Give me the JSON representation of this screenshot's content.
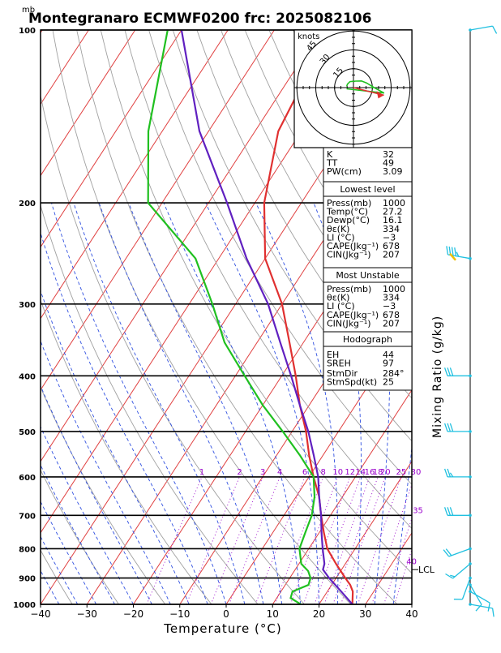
{
  "title": "Montegranaro ECMWF0200  frc: 2025082106",
  "y_unit": "mb",
  "xlabel": "Temperature (°C)",
  "mixing_label": "Mixing Ratio (g/kg)",
  "hodo_unit": "knots",
  "hodo_rings": [
    "15",
    "30",
    "45"
  ],
  "lcl_label": "LCL",
  "lcl_pressure": 870,
  "mixing_ratio_labels": [
    "1",
    "2",
    "3",
    "4",
    "6",
    "8",
    "10",
    "12",
    "14",
    "16",
    "18",
    "20",
    "25",
    "30",
    "35",
    "40"
  ],
  "indices": [
    {
      "k": "K",
      "v": "32"
    },
    {
      "k": "TT",
      "v": "49"
    },
    {
      "k": "PW(cm)",
      "v": "3.09"
    }
  ],
  "lowest_level": {
    "heading": "Lowest level",
    "rows": [
      {
        "k": "Press(mb)",
        "v": "1000"
      },
      {
        "k": "Temp(°C)",
        "v": "27.2"
      },
      {
        "k": "Dewp(°C)",
        "v": "16.1"
      },
      {
        "k": "θε(K)",
        "v": "334"
      },
      {
        "k": "LI (°C)",
        "v": "−3"
      },
      {
        "k": "CAPE(Jkg⁻¹)",
        "v": "678"
      },
      {
        "k": "CIN(Jkg⁻¹)",
        "v": "207"
      }
    ]
  },
  "most_unstable": {
    "heading": "Most Unstable",
    "rows": [
      {
        "k": "Press(mb)",
        "v": "1000"
      },
      {
        "k": "θε(K)",
        "v": "334"
      },
      {
        "k": "LI (°C)",
        "v": "−3"
      },
      {
        "k": "CAPE(Jkg⁻¹)",
        "v": "678"
      },
      {
        "k": "CIN(Jkg⁻¹)",
        "v": "207"
      }
    ]
  },
  "hodograph": {
    "heading": "Hodograph",
    "rows": [
      {
        "k": "EH",
        "v": "44"
      },
      {
        "k": "SREH",
        "v": "97"
      },
      {
        "k": "StmDir",
        "v": "284°"
      },
      {
        "k": "StmSpd(kt)",
        "v": "25"
      }
    ]
  },
  "colors": {
    "temperature": "#e03030",
    "dewpoint": "#20c020",
    "parcel": "#6020c0",
    "isotherm": "#e04040",
    "dry_adiabat": "#a0a0a0",
    "moist_adiabat": "#3050e0",
    "mixing_ratio": "#9900cc",
    "barb": "#20c0e0"
  },
  "chart_data": {
    "type": "line",
    "title": "Montegranaro ECMWF0200  frc: 2025082106",
    "xlabel": "Temperature (°C)",
    "ylabel": "mb",
    "x_ticks": [
      -40,
      -30,
      -20,
      -10,
      0,
      10,
      20,
      30,
      40
    ],
    "y_ticks": [
      100,
      200,
      300,
      400,
      500,
      600,
      700,
      800,
      900,
      1000
    ],
    "xlim": [
      -40,
      40
    ],
    "ylim": [
      1000,
      100
    ],
    "y_scale": "log",
    "series": [
      {
        "key": "temperature",
        "points": [
          [
            1000,
            27.2
          ],
          [
            950,
            25.5
          ],
          [
            925,
            24
          ],
          [
            900,
            22
          ],
          [
            850,
            18
          ],
          [
            800,
            14
          ],
          [
            750,
            11
          ],
          [
            700,
            8
          ],
          [
            650,
            5
          ],
          [
            600,
            1
          ],
          [
            550,
            -3
          ],
          [
            500,
            -7
          ],
          [
            450,
            -12
          ],
          [
            400,
            -17
          ],
          [
            350,
            -23
          ],
          [
            300,
            -30
          ],
          [
            250,
            -40
          ],
          [
            200,
            -48
          ],
          [
            150,
            -55
          ],
          [
            100,
            -58
          ]
        ]
      },
      {
        "key": "dewpoint",
        "points": [
          [
            1000,
            16.1
          ],
          [
            975,
            13
          ],
          [
            950,
            12.5
          ],
          [
            925,
            15
          ],
          [
            900,
            14.5
          ],
          [
            875,
            13
          ],
          [
            850,
            10.5
          ],
          [
            800,
            8
          ],
          [
            750,
            7
          ],
          [
            700,
            6
          ],
          [
            650,
            4
          ],
          [
            600,
            1
          ],
          [
            550,
            -5
          ],
          [
            500,
            -12
          ],
          [
            450,
            -20
          ],
          [
            400,
            -28
          ],
          [
            350,
            -37
          ],
          [
            300,
            -45
          ],
          [
            250,
            -55
          ],
          [
            200,
            -73
          ],
          [
            150,
            -83
          ],
          [
            100,
            -93
          ]
        ]
      },
      {
        "key": "parcel",
        "points": [
          [
            1000,
            27.2
          ],
          [
            950,
            23
          ],
          [
            900,
            18.5
          ],
          [
            870,
            16
          ],
          [
            850,
            15.5
          ],
          [
            800,
            13
          ],
          [
            750,
            10.5
          ],
          [
            700,
            8
          ],
          [
            650,
            5
          ],
          [
            600,
            2
          ],
          [
            550,
            -2
          ],
          [
            500,
            -6.5
          ],
          [
            450,
            -12
          ],
          [
            400,
            -18
          ],
          [
            350,
            -25
          ],
          [
            300,
            -33
          ],
          [
            250,
            -44
          ],
          [
            200,
            -56
          ],
          [
            150,
            -72
          ],
          [
            100,
            -90
          ]
        ]
      }
    ],
    "winds": [
      {
        "p": 100,
        "dir": 80,
        "spd": 10
      },
      {
        "p": 250,
        "dir": 280,
        "spd": 45
      },
      {
        "p": 400,
        "dir": 270,
        "spd": 30
      },
      {
        "p": 500,
        "dir": 270,
        "spd": 30
      },
      {
        "p": 600,
        "dir": 270,
        "spd": 25
      },
      {
        "p": 700,
        "dir": 270,
        "spd": 30
      },
      {
        "p": 800,
        "dir": 250,
        "spd": 20
      },
      {
        "p": 850,
        "dir": 230,
        "spd": 15
      },
      {
        "p": 900,
        "dir": 200,
        "spd": 10
      },
      {
        "p": 925,
        "dir": 150,
        "spd": 10
      },
      {
        "p": 950,
        "dir": 120,
        "spd": 10
      },
      {
        "p": 1000,
        "dir": 100,
        "spd": 10
      }
    ]
  }
}
